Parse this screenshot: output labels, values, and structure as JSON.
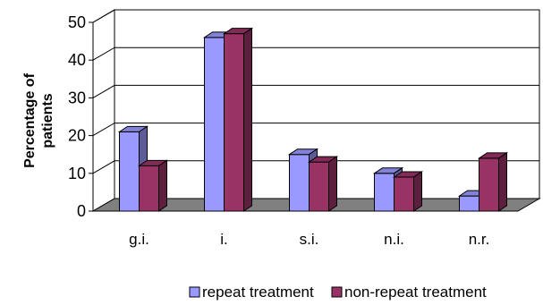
{
  "chart_data": {
    "type": "bar",
    "categories": [
      "g.i.",
      "i.",
      "s.i.",
      "n.i.",
      "n.r."
    ],
    "series": [
      {
        "name": "repeat treatment",
        "values": [
          21,
          46,
          15,
          10,
          4
        ],
        "color": "#9999ff"
      },
      {
        "name": "non-repeat treatment",
        "values": [
          12,
          47,
          13,
          9,
          14
        ],
        "color": "#993366"
      }
    ],
    "ylabel_lines": [
      "Percentage of",
      "patients"
    ],
    "ylim": [
      0,
      50
    ],
    "yticks": [
      "0",
      "10",
      "20",
      "30",
      "40",
      "50"
    ],
    "grid": true,
    "legend_position": "bottom",
    "floor_color": "#808080"
  }
}
